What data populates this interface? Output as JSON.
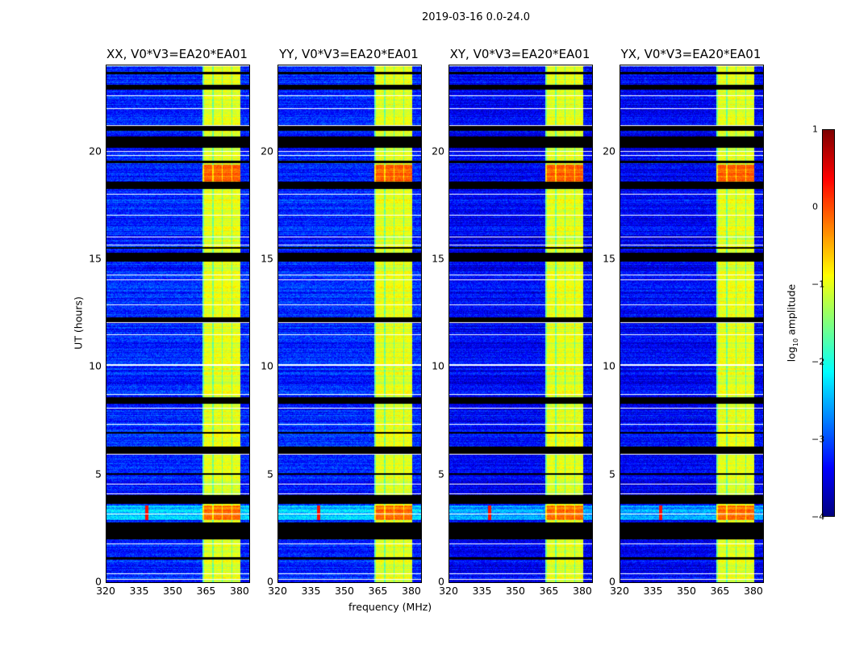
{
  "chart_data": {
    "type": "heatmap",
    "title": "2019-03-16 0.0-24.0",
    "xlabel": "frequency (MHz)",
    "ylabel": "UT (hours)",
    "xlim": [
      320,
      384
    ],
    "ylim": [
      0,
      24
    ],
    "xticks": [
      "320",
      "335",
      "350",
      "365",
      "380"
    ],
    "yticks": [
      "0",
      "5",
      "10",
      "15",
      "20"
    ],
    "panels": [
      {
        "title": "XX, V0*V3=EA20*EA01"
      },
      {
        "title": "YY, V0*V3=EA20*EA01"
      },
      {
        "title": "XY, V0*V3=EA20*EA01"
      },
      {
        "title": "YX, V0*V3=EA20*EA01"
      }
    ],
    "colorbar": {
      "label": "log10 amplitude",
      "label_main": "log",
      "label_sub": "10",
      "label_tail": " amplitude",
      "range": [
        -4,
        1
      ],
      "ticks": [
        "1",
        "0",
        "−1",
        "−2",
        "−3",
        "−4"
      ],
      "colormap": "jet"
    },
    "bright_band_mhz": [
      363,
      380
    ],
    "bright_band_log_amp": -1,
    "background_log_amp": -3.2,
    "flagged_ut_intervals": [
      [
        1.05,
        1.2
      ],
      [
        2.0,
        2.8
      ],
      [
        3.65,
        4.05
      ],
      [
        5.0,
        5.1
      ],
      [
        6.0,
        6.3
      ],
      [
        6.9,
        7.0
      ],
      [
        8.3,
        8.6
      ],
      [
        12.1,
        12.3
      ],
      [
        14.9,
        15.3
      ],
      [
        15.5,
        15.6
      ],
      [
        18.3,
        18.6
      ],
      [
        19.5,
        19.6
      ],
      [
        20.2,
        20.7
      ],
      [
        21.0,
        21.2
      ],
      [
        22.9,
        23.1
      ],
      [
        23.6,
        23.7
      ]
    ],
    "rfi_ut_interval": [
      2.9,
      3.6
    ],
    "rfi_line_mhz": 338
  }
}
